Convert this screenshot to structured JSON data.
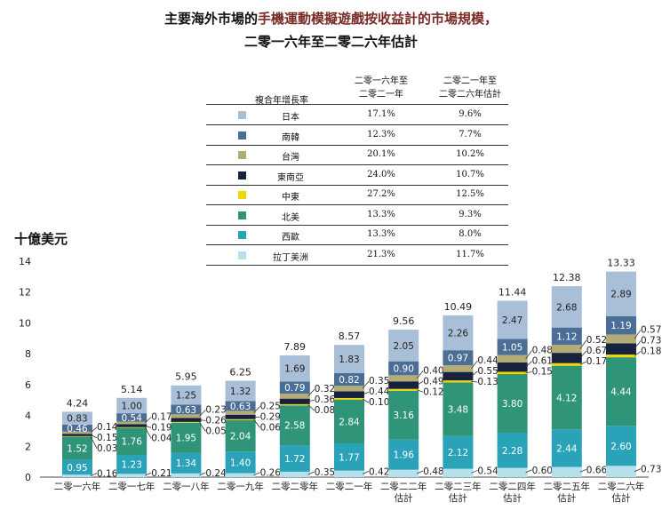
{
  "title": {
    "line1_pre": "主要海外市場的",
    "line1_highlight": "手機運動模擬遊戲按收益計的市場規模，",
    "line2": "二零一六年至二零二六年估計"
  },
  "legend_table": {
    "header_label": "複合年增長率",
    "col1_header": "二零一六年至\n二零二一年",
    "col2_header": "二零二一年至\n二零二六年估計",
    "rows": [
      {
        "name": "日本",
        "color": "#a9bfd8",
        "cagr1": "17.1%",
        "cagr2": "9.6%"
      },
      {
        "name": "南韓",
        "color": "#4a6e96",
        "cagr1": "12.3%",
        "cagr2": "7.7%"
      },
      {
        "name": "台灣",
        "color": "#b5ab76",
        "cagr1": "20.1%",
        "cagr2": "10.2%"
      },
      {
        "name": "東南亞",
        "color": "#17223f",
        "cagr1": "24.0%",
        "cagr2": "10.7%"
      },
      {
        "name": "中東",
        "color": "#efd800",
        "cagr1": "27.2%",
        "cagr2": "12.5%"
      },
      {
        "name": "北美",
        "color": "#2f9478",
        "cagr1": "13.3%",
        "cagr2": "9.3%"
      },
      {
        "name": "西歐",
        "color": "#2aa2b8",
        "cagr1": "13.3%",
        "cagr2": "8.0%"
      },
      {
        "name": "拉丁美洲",
        "color": "#b5e0ec",
        "cagr1": "21.3%",
        "cagr2": "11.7%"
      }
    ]
  },
  "chart_data": {
    "type": "bar",
    "stacked": true,
    "ylabel": "十億美元",
    "ylim": [
      0,
      14
    ],
    "yticks": [
      "0",
      "2",
      "4",
      "6",
      "8",
      "10",
      "12",
      "14"
    ],
    "categories": [
      [
        "二零一六年"
      ],
      [
        "二零一七年"
      ],
      [
        "二零一八年"
      ],
      [
        "二零一九年"
      ],
      [
        "二零二零年"
      ],
      [
        "二零二一年"
      ],
      [
        "二零二二年",
        "估計"
      ],
      [
        "二零二三年",
        "估計"
      ],
      [
        "二零二四年",
        "估計"
      ],
      [
        "二零二五年",
        "估計"
      ],
      [
        "二零二六年",
        "估計"
      ]
    ],
    "totals": [
      "4.24",
      "5.14",
      "5.95",
      "6.25",
      "7.89",
      "8.57",
      "9.56",
      "10.49",
      "11.44",
      "12.38",
      "13.33"
    ],
    "series": [
      {
        "name": "拉丁美洲",
        "color": "#b5e0ec",
        "labels": [
          "0.16",
          "0.21",
          "0.24",
          "0.26",
          "0.35",
          "0.42",
          "0.48",
          "0.54",
          "0.60",
          "0.66",
          "0.73"
        ]
      },
      {
        "name": "西歐",
        "color": "#2aa2b8",
        "labels": [
          "0.95",
          "1.23",
          "1.34",
          "1.40",
          "1.72",
          "1.77",
          "1.96",
          "2.12",
          "2.28",
          "2.44",
          "2.60"
        ]
      },
      {
        "name": "北美",
        "color": "#2f9478",
        "labels": [
          "1.52",
          "1.76",
          "1.95",
          "2.04",
          "2.58",
          "2.84",
          "3.16",
          "3.48",
          "3.80",
          "4.12",
          "4.44"
        ]
      },
      {
        "name": "中東",
        "color": "#efd800",
        "labels": [
          "0.03",
          "0.04",
          "0.05",
          "0.06",
          "0.08",
          "0.10",
          "0.12",
          "0.13",
          "0.15",
          "0.17",
          "0.18"
        ]
      },
      {
        "name": "東南亞",
        "color": "#17223f",
        "labels": [
          "0.15",
          "0.19",
          "0.26",
          "0.29",
          "0.36",
          "0.44",
          "0.49",
          "0.55",
          "0.61",
          "0.67",
          "0.73"
        ]
      },
      {
        "name": "台灣",
        "color": "#b5ab76",
        "labels": [
          "0.14",
          "0.17",
          "0.23",
          "0.25",
          "0.32",
          "0.35",
          "0.40",
          "0.44",
          "0.48",
          "0.52",
          "0.57"
        ]
      },
      {
        "name": "南韓",
        "color": "#4a6e96",
        "labels": [
          "0.46",
          "0.54",
          "0.63",
          "0.63",
          "0.79",
          "0.82",
          "0.90",
          "0.97",
          "1.05",
          "1.12",
          "1.19"
        ]
      },
      {
        "name": "日本",
        "color": "#a9bfd8",
        "labels": [
          "0.83",
          "1.00",
          "1.25",
          "1.32",
          "1.69",
          "1.83",
          "2.05",
          "2.26",
          "2.47",
          "2.68",
          "2.89"
        ]
      }
    ]
  }
}
